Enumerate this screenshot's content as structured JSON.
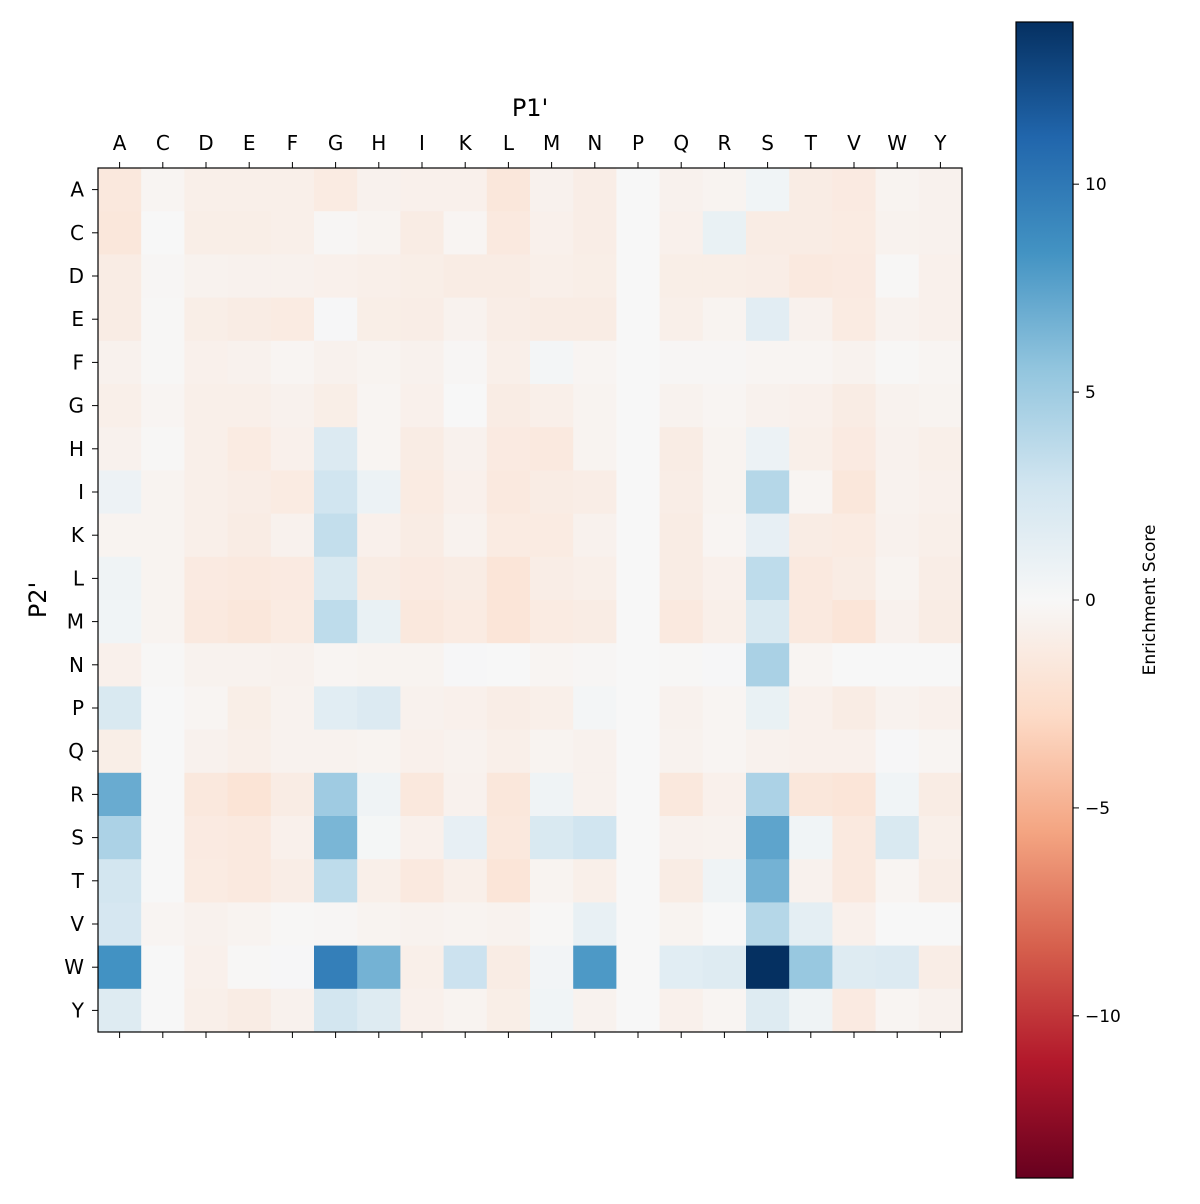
{
  "chart_data": {
    "type": "heatmap",
    "title": "",
    "xlabel": "P1'",
    "ylabel": "P2'",
    "x_categories": [
      "A",
      "C",
      "D",
      "E",
      "F",
      "G",
      "H",
      "I",
      "K",
      "L",
      "M",
      "N",
      "P",
      "Q",
      "R",
      "S",
      "T",
      "V",
      "W",
      "Y"
    ],
    "y_categories": [
      "A",
      "C",
      "D",
      "E",
      "F",
      "G",
      "H",
      "I",
      "K",
      "L",
      "M",
      "N",
      "P",
      "Q",
      "R",
      "S",
      "T",
      "V",
      "W",
      "Y"
    ],
    "colormap": "RdBu",
    "colormap_stops": [
      "#67001f",
      "#b2182b",
      "#d6604d",
      "#f4a582",
      "#fddbc7",
      "#f7f7f7",
      "#d1e5f0",
      "#92c5de",
      "#4393c3",
      "#2166ac",
      "#053061"
    ],
    "vmin": -13.9,
    "vmax": 13.9,
    "colorbar": {
      "label": "Enrichment Score",
      "ticks": [
        10,
        5,
        0,
        -5,
        -10
      ],
      "tick_labels": [
        "10",
        "5",
        "0",
        "−5",
        "−10"
      ]
    },
    "values": [
      [
        -1.5,
        -0.3,
        -0.8,
        -0.8,
        -0.8,
        -1.2,
        -0.6,
        -0.7,
        -0.7,
        -1.6,
        -0.6,
        -1.0,
        0,
        -0.6,
        -0.4,
        0.5,
        -1.1,
        -1.3,
        -0.4,
        -0.6
      ],
      [
        -1.6,
        0,
        -0.9,
        -0.9,
        -0.8,
        -0.2,
        -0.4,
        -1.1,
        -0.3,
        -1.4,
        -0.7,
        -1.0,
        0,
        -0.7,
        1.0,
        -1.1,
        -1.1,
        -1.2,
        -0.5,
        -0.6
      ],
      [
        -1.1,
        -0.2,
        -0.5,
        -0.6,
        -0.6,
        -0.7,
        -0.8,
        -0.9,
        -1.1,
        -1.1,
        -0.8,
        -0.9,
        0,
        -0.9,
        -0.9,
        -1.0,
        -1.4,
        -1.3,
        -0.1,
        -0.7
      ],
      [
        -1.1,
        -0.1,
        -0.9,
        -1.1,
        -1.2,
        0.1,
        -0.9,
        -1.0,
        -0.5,
        -1.0,
        -1.1,
        -1.1,
        0,
        -0.8,
        -0.4,
        1.5,
        -0.6,
        -1.2,
        -0.5,
        -0.7
      ],
      [
        -0.6,
        -0.1,
        -0.7,
        -0.6,
        -0.3,
        -0.6,
        -0.4,
        -0.6,
        -0.2,
        -0.8,
        0.3,
        -0.3,
        0,
        -0.2,
        -0.2,
        -0.3,
        -0.3,
        -0.5,
        -0.1,
        -0.3
      ],
      [
        -0.8,
        -0.3,
        -0.8,
        -0.8,
        -0.6,
        -0.9,
        -0.3,
        -0.7,
        0,
        -1.1,
        -0.8,
        -0.4,
        0,
        -0.5,
        -0.3,
        -0.6,
        -0.7,
        -1.1,
        -0.5,
        -0.4
      ],
      [
        -0.6,
        -0.1,
        -0.8,
        -1.2,
        -0.7,
        2.0,
        -0.3,
        -1.1,
        -0.6,
        -1.3,
        -1.4,
        -0.4,
        0,
        -1.1,
        -0.4,
        0.8,
        -0.8,
        -1.3,
        -0.6,
        -0.8
      ],
      [
        0.7,
        -0.4,
        -0.8,
        -1.0,
        -1.2,
        2.8,
        0.8,
        -1.2,
        -0.7,
        -1.4,
        -1.1,
        -1.0,
        0,
        -1.0,
        -0.4,
        4.0,
        -0.3,
        -1.6,
        -0.5,
        -0.7
      ],
      [
        -0.4,
        -0.4,
        -0.8,
        -1.1,
        -0.6,
        3.4,
        -0.7,
        -1.1,
        -0.5,
        -1.2,
        -1.2,
        -0.6,
        0,
        -1.1,
        -0.3,
        1.2,
        -1.1,
        -1.2,
        -0.6,
        -0.8
      ],
      [
        0.6,
        -0.4,
        -1.3,
        -1.4,
        -1.3,
        2.2,
        -1.1,
        -1.3,
        -1.1,
        -1.8,
        -1.0,
        -0.8,
        0,
        -1.1,
        -0.7,
        3.6,
        -1.4,
        -1.1,
        -0.4,
        -1.0
      ],
      [
        0.5,
        -0.4,
        -1.4,
        -1.6,
        -1.2,
        3.6,
        1.0,
        -1.5,
        -1.2,
        -1.8,
        -1.2,
        -1.1,
        0,
        -1.4,
        -0.8,
        2.2,
        -1.4,
        -1.8,
        -0.6,
        -1.1
      ],
      [
        -0.7,
        -0.1,
        -0.5,
        -0.5,
        -0.6,
        -0.3,
        -0.4,
        -0.4,
        0.1,
        0.0,
        -0.3,
        -0.2,
        0,
        -0.1,
        0.1,
        4.5,
        -0.3,
        0.0,
        0.0,
        0.0
      ],
      [
        2.2,
        0,
        -0.3,
        -0.9,
        -0.5,
        1.6,
        2.0,
        -0.6,
        -0.7,
        -1.0,
        -0.8,
        0.3,
        0,
        -0.6,
        -0.3,
        1.0,
        -0.7,
        -1.1,
        -0.5,
        -0.7
      ],
      [
        -0.9,
        0,
        -0.6,
        -0.8,
        -0.5,
        -0.5,
        -0.4,
        -0.7,
        -0.5,
        -0.8,
        -0.4,
        -0.6,
        0,
        -0.5,
        -0.3,
        -0.6,
        -0.7,
        -0.7,
        0.1,
        -0.3
      ],
      [
        7.0,
        0,
        -1.5,
        -1.9,
        -1.1,
        5.0,
        0.6,
        -1.5,
        -0.6,
        -1.6,
        0.6,
        -0.6,
        0,
        -1.5,
        -0.7,
        4.4,
        -1.6,
        -1.8,
        0.5,
        -1.1
      ],
      [
        4.4,
        0,
        -1.3,
        -1.4,
        -0.7,
        6.4,
        0.2,
        -0.7,
        1.2,
        -1.5,
        2.2,
        2.8,
        0,
        -0.6,
        -0.5,
        7.4,
        0.5,
        -1.4,
        2.2,
        -0.8
      ],
      [
        2.6,
        0,
        -1.2,
        -1.4,
        -1.0,
        3.6,
        -0.8,
        -1.4,
        -0.8,
        -1.8,
        -0.4,
        -0.8,
        0,
        -1.1,
        0.6,
        6.6,
        -0.6,
        -1.4,
        -0.3,
        -1.0
      ],
      [
        2.4,
        -0.3,
        -0.6,
        -0.4,
        -0.1,
        -0.2,
        -0.4,
        -0.5,
        -0.4,
        -0.5,
        -0.1,
        1.1,
        0,
        -0.4,
        0.0,
        4.0,
        1.4,
        -0.7,
        0.0,
        0.0
      ],
      [
        8.4,
        0,
        -0.7,
        -0.1,
        0.1,
        9.6,
        6.6,
        -0.8,
        3.0,
        -1.1,
        0.4,
        8.0,
        0,
        1.6,
        1.8,
        13.9,
        5.3,
        1.8,
        2.0,
        -1.0
      ],
      [
        1.8,
        0,
        -0.8,
        -1.1,
        -0.6,
        2.6,
        1.8,
        -0.7,
        -0.4,
        -0.9,
        0.5,
        -0.5,
        0,
        -0.7,
        -0.3,
        1.8,
        0.6,
        -1.3,
        -0.3,
        -0.6
      ]
    ]
  }
}
